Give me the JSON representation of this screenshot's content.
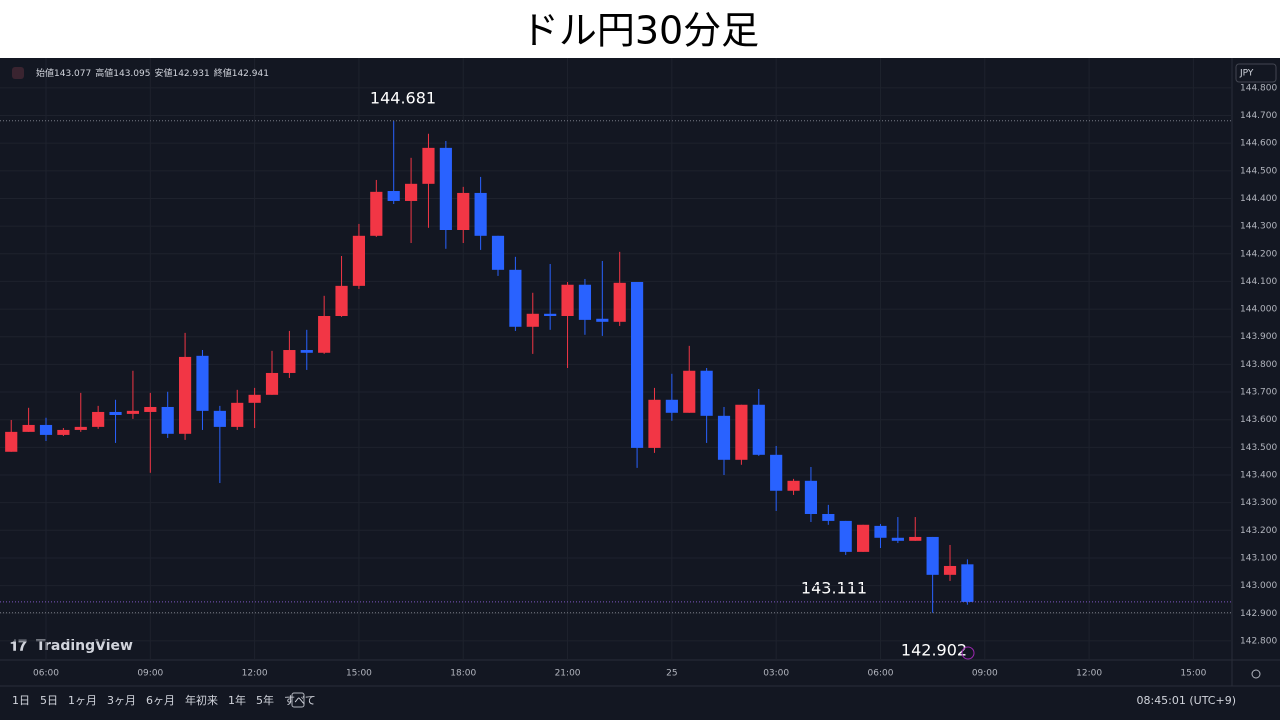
{
  "chart_data": {
    "type": "candlestick",
    "title": "ドル円30分足",
    "ohlc_labels": [
      "始値",
      "高値",
      "安値",
      "終値"
    ],
    "currency": "JPY",
    "brand": "TradingView",
    "ranges": [
      "1日",
      "5日",
      "1ヶ月",
      "3ヶ月",
      "6ヶ月",
      "年初来",
      "1年",
      "5年",
      "すべて"
    ],
    "clock": "08:45:01 (UTC+9)",
    "annotations": [
      "144.681",
      "143.111",
      "142.902"
    ],
    "up_color": "#f23645",
    "down_color": "#2962ff",
    "grid": true,
    "x": [
      5,
      5.5,
      6,
      6.5,
      7,
      7.5,
      8,
      8.5,
      9,
      9.5,
      10,
      10.5,
      11,
      11.5,
      12,
      12.5,
      13,
      13.5,
      14,
      14.5,
      15,
      15.5,
      16,
      16.5,
      17,
      17.5,
      18,
      18.5,
      19,
      19.5,
      20,
      20.5,
      21,
      21.5,
      22,
      22.5,
      23,
      23.5,
      24,
      24.5,
      25,
      25.5,
      26,
      26.5,
      27,
      27.5,
      28,
      28.5,
      29,
      29.5,
      30,
      30.5,
      31,
      31.5,
      32,
      32.5
    ],
    "open": [
      143.484,
      143.556,
      143.581,
      143.545,
      143.563,
      143.574,
      143.628,
      143.621,
      143.628,
      143.646,
      143.549,
      143.831,
      143.632,
      143.574,
      143.661,
      143.69,
      143.769,
      143.852,
      143.842,
      143.975,
      144.084,
      144.265,
      144.427,
      144.391,
      144.453,
      144.583,
      144.286,
      144.42,
      144.265,
      144.142,
      143.936,
      143.983,
      143.975,
      144.088,
      143.965,
      143.954,
      144.098,
      143.498,
      143.672,
      143.625,
      143.777,
      143.614,
      143.455,
      143.654,
      143.473,
      143.343,
      143.379,
      143.259,
      143.234,
      143.122,
      143.216,
      143.173,
      143.162,
      143.176,
      143.039,
      143.077
    ],
    "high": [
      143.599,
      143.643,
      143.607,
      143.57,
      143.697,
      143.65,
      143.672,
      143.777,
      143.697,
      143.701,
      143.914,
      143.852,
      143.65,
      143.708,
      143.715,
      143.849,
      143.921,
      143.925,
      144.048,
      144.192,
      144.308,
      144.467,
      144.681,
      144.547,
      144.634,
      144.608,
      144.442,
      144.478,
      144.265,
      144.189,
      144.059,
      144.163,
      144.098,
      144.109,
      144.174,
      144.207,
      144.098,
      143.715,
      143.766,
      143.867,
      143.787,
      143.646,
      143.654,
      143.711,
      143.505,
      143.386,
      143.429,
      143.292,
      143.234,
      143.22,
      143.223,
      143.248,
      143.248,
      143.176,
      143.147,
      143.095
    ],
    "low": [
      143.484,
      143.556,
      143.523,
      143.541,
      143.556,
      143.567,
      143.516,
      143.603,
      143.408,
      143.534,
      143.527,
      143.563,
      143.371,
      143.563,
      143.57,
      143.69,
      143.751,
      143.78,
      143.838,
      143.972,
      144.073,
      144.261,
      144.38,
      144.239,
      144.294,
      144.218,
      144.239,
      144.214,
      144.12,
      143.921,
      143.838,
      143.925,
      143.787,
      143.907,
      143.903,
      143.939,
      143.426,
      143.48,
      143.596,
      143.625,
      143.516,
      143.4,
      143.437,
      143.469,
      143.27,
      143.328,
      143.23,
      143.22,
      143.111,
      143.122,
      143.136,
      143.154,
      143.162,
      142.902,
      143.017,
      142.931
    ],
    "close": [
      143.556,
      143.581,
      143.545,
      143.563,
      143.574,
      143.628,
      143.617,
      143.632,
      143.646,
      143.549,
      143.827,
      143.632,
      143.574,
      143.661,
      143.69,
      143.769,
      143.852,
      143.842,
      143.975,
      144.084,
      144.265,
      144.424,
      144.391,
      144.453,
      144.583,
      144.286,
      144.42,
      144.265,
      144.142,
      143.936,
      143.983,
      143.975,
      144.088,
      143.961,
      143.954,
      144.095,
      143.498,
      143.672,
      143.625,
      143.777,
      143.614,
      143.455,
      143.654,
      143.473,
      143.343,
      143.379,
      143.259,
      143.234,
      143.122,
      143.22,
      143.173,
      143.162,
      143.176,
      143.039,
      143.071,
      142.941
    ],
    "xlim": [
      4.677,
      40.11
    ],
    "xticks": [
      {
        "value": 6,
        "label": "06:00"
      },
      {
        "value": 9,
        "label": "09:00"
      },
      {
        "value": 12,
        "label": "12:00"
      },
      {
        "value": 15,
        "label": "15:00"
      },
      {
        "value": 18,
        "label": "18:00"
      },
      {
        "value": 21,
        "label": "21:00"
      },
      {
        "value": 24,
        "label": "25"
      },
      {
        "value": 27,
        "label": "03:00"
      },
      {
        "value": 30,
        "label": "06:00"
      },
      {
        "value": 33,
        "label": "09:00"
      },
      {
        "value": 36,
        "label": "12:00"
      },
      {
        "value": 39,
        "label": "15:00"
      }
    ],
    "ylim": [
      142.731,
      144.908
    ],
    "yticks": [
      {
        "value": 142.8,
        "label": "142.800"
      },
      {
        "value": 142.9,
        "label": "142.900"
      },
      {
        "value": 143.0,
        "label": "143.000"
      },
      {
        "value": 143.1,
        "label": "143.100"
      },
      {
        "value": 143.2,
        "label": "143.200"
      },
      {
        "value": 143.3,
        "label": "143.300"
      },
      {
        "value": 143.4,
        "label": "143.400"
      },
      {
        "value": 143.5,
        "label": "143.500"
      },
      {
        "value": 143.6,
        "label": "143.600"
      },
      {
        "value": 143.7,
        "label": "143.700"
      },
      {
        "value": 143.8,
        "label": "143.800"
      },
      {
        "value": 143.9,
        "label": "143.900"
      },
      {
        "value": 144.0,
        "label": "144.000"
      },
      {
        "value": 144.1,
        "label": "144.100"
      },
      {
        "value": 144.2,
        "label": "144.200"
      },
      {
        "value": 144.3,
        "label": "144.300"
      },
      {
        "value": 144.4,
        "label": "144.400"
      },
      {
        "value": 144.5,
        "label": "144.500"
      },
      {
        "value": 144.6,
        "label": "144.600"
      },
      {
        "value": 144.7,
        "label": "144.700"
      },
      {
        "value": 144.8,
        "label": "144.800"
      }
    ]
  }
}
